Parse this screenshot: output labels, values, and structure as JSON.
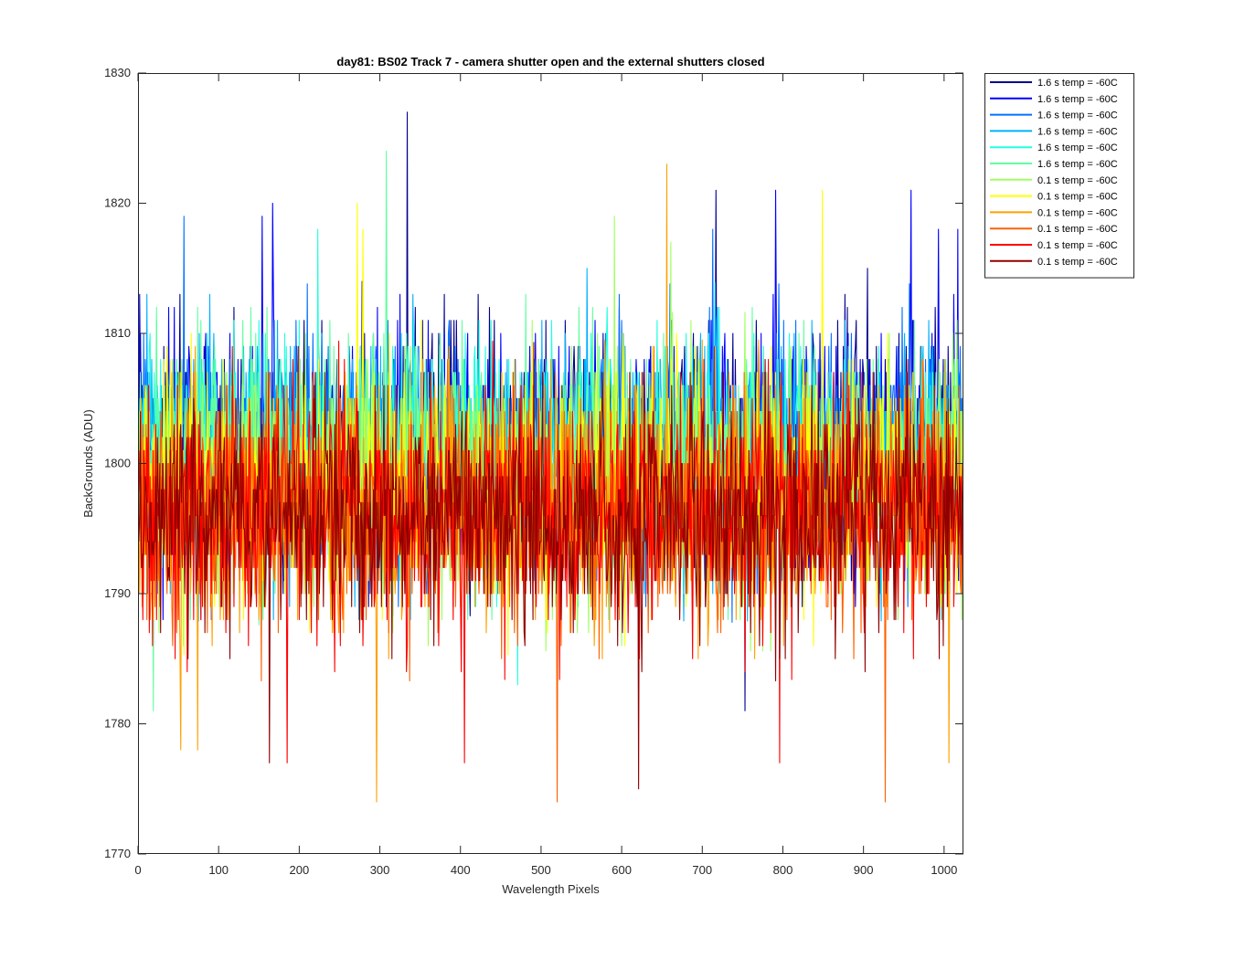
{
  "chart_data": {
    "type": "line",
    "title": "day81: BS02  Track 7 - camera shutter open and the external shutters closed",
    "xlabel": "Wavelength Pixels",
    "ylabel": "BackGrounds (ADU)",
    "xlim": [
      0,
      1024
    ],
    "ylim": [
      1770,
      1830
    ],
    "xticks": [
      0,
      100,
      200,
      300,
      400,
      500,
      600,
      700,
      800,
      900,
      1000
    ],
    "yticks": [
      1770,
      1780,
      1790,
      1800,
      1810,
      1820,
      1830
    ],
    "x_points": 1024,
    "legend_position": "outside-top-right",
    "grid": false,
    "series": [
      {
        "name": "1.6 s temp = -60C",
        "color": "#00008f",
        "center": 1801.3,
        "spread": 4.6,
        "peaks": [
          [
            333,
            1827
          ],
          [
            716,
            1821
          ],
          [
            752,
            1781
          ],
          [
            904,
            1815
          ]
        ]
      },
      {
        "name": "1.6 s temp = -60C",
        "color": "#0000ff",
        "center": 1801.0,
        "spread": 4.5,
        "peaks": [
          [
            153,
            1819
          ],
          [
            166,
            1820
          ],
          [
            790,
            1821
          ],
          [
            958,
            1821
          ],
          [
            992,
            1818
          ],
          [
            1016,
            1818
          ]
        ]
      },
      {
        "name": "1.6 s temp = -60C",
        "color": "#0070ff",
        "center": 1800.8,
        "spread": 4.5,
        "peaks": [
          [
            56,
            1819
          ],
          [
            712,
            1818
          ]
        ]
      },
      {
        "name": "1.6 s temp = -60C",
        "color": "#00b0ff",
        "center": 1800.9,
        "spread": 4.4,
        "peaks": [
          [
            10,
            1813
          ],
          [
            556,
            1815
          ]
        ]
      },
      {
        "name": "1.6 s temp = -60C",
        "color": "#20ffdf",
        "center": 1800.8,
        "spread": 4.4,
        "peaks": [
          [
            222,
            1818
          ],
          [
            470,
            1783
          ]
        ]
      },
      {
        "name": "1.6 s temp = -60C",
        "color": "#60ff9f",
        "center": 1800.6,
        "spread": 4.4,
        "peaks": [
          [
            307,
            1824
          ],
          [
            18,
            1781
          ]
        ]
      },
      {
        "name": "0.1 s temp = -60C",
        "color": "#9fff60",
        "center": 1798.6,
        "spread": 4.4,
        "peaks": [
          [
            590,
            1819
          ],
          [
            660,
            1817
          ]
        ]
      },
      {
        "name": "0.1 s temp = -60C",
        "color": "#ffff00",
        "center": 1798.3,
        "spread": 4.4,
        "peaks": [
          [
            271,
            1820
          ],
          [
            278,
            1818
          ],
          [
            848,
            1821
          ]
        ]
      },
      {
        "name": "0.1 s temp = -60C",
        "color": "#ffa000",
        "center": 1796.5,
        "spread": 4.5,
        "peaks": [
          [
            655,
            1823
          ],
          [
            295,
            1774
          ],
          [
            52,
            1778
          ],
          [
            73,
            1778
          ],
          [
            1005,
            1777
          ]
        ]
      },
      {
        "name": "0.1 s temp = -60C",
        "color": "#ff6000",
        "center": 1796.3,
        "spread": 4.4,
        "peaks": [
          [
            519,
            1774
          ],
          [
            926,
            1774
          ]
        ]
      },
      {
        "name": "0.1 s temp = -60C",
        "color": "#ff0000",
        "center": 1796.4,
        "spread": 4.4,
        "peaks": [
          [
            184,
            1777
          ],
          [
            404,
            1777
          ],
          [
            795,
            1777
          ]
        ]
      },
      {
        "name": "0.1 s temp = -60C",
        "color": "#8f0000",
        "center": 1796.3,
        "spread": 4.3,
        "peaks": [
          [
            162,
            1777
          ],
          [
            620,
            1775
          ]
        ]
      }
    ]
  }
}
